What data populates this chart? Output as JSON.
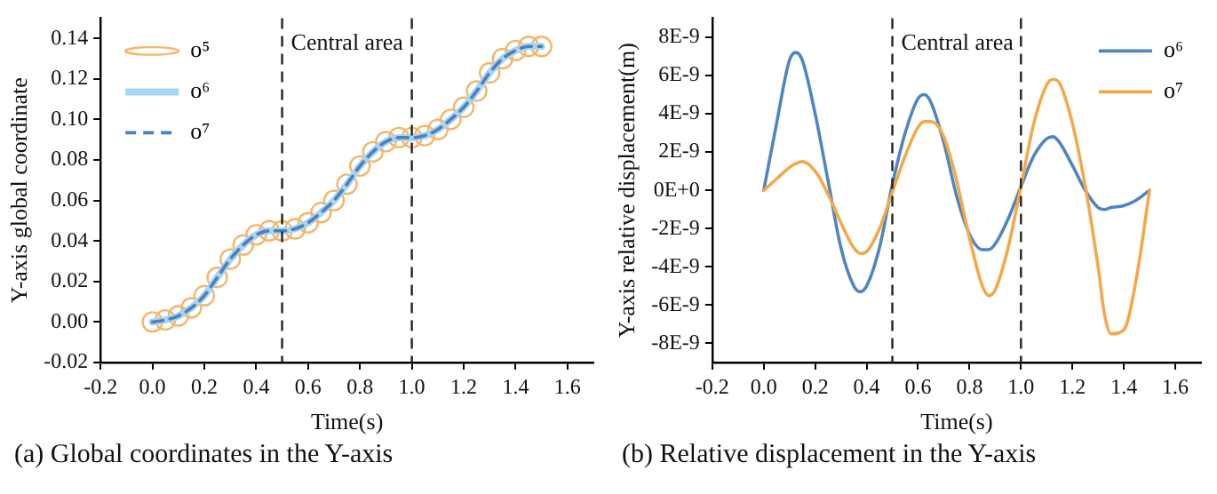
{
  "chart_data": [
    {
      "type": "line",
      "title": "(a) Global coordinates in the Y-axis",
      "xlabel": "Time(s)",
      "ylabel": "Y-axis global coordinate",
      "x": [
        0,
        0.05,
        0.1,
        0.15,
        0.2,
        0.25,
        0.3,
        0.35,
        0.4,
        0.45,
        0.5,
        0.55,
        0.6,
        0.65,
        0.7,
        0.75,
        0.8,
        0.85,
        0.9,
        0.95,
        1.0,
        1.05,
        1.1,
        1.15,
        1.2,
        1.25,
        1.3,
        1.35,
        1.4,
        1.45,
        1.5
      ],
      "series": [
        {
          "name": "o⁵",
          "type": "scatter",
          "marker": "circle",
          "color": "#f5b56b",
          "values": [
            0,
            0.001,
            0.003,
            0.007,
            0.013,
            0.022,
            0.031,
            0.038,
            0.043,
            0.045,
            0.045,
            0.046,
            0.049,
            0.054,
            0.06,
            0.068,
            0.077,
            0.084,
            0.089,
            0.091,
            0.091,
            0.092,
            0.095,
            0.1,
            0.106,
            0.114,
            0.123,
            0.13,
            0.134,
            0.136,
            0.136
          ]
        },
        {
          "name": "o⁶",
          "type": "line",
          "marker": "none",
          "line_style": "solid",
          "color": "#a9d4ef",
          "values": [
            0,
            0.001,
            0.003,
            0.007,
            0.013,
            0.022,
            0.031,
            0.038,
            0.043,
            0.045,
            0.045,
            0.046,
            0.049,
            0.054,
            0.06,
            0.068,
            0.077,
            0.084,
            0.089,
            0.091,
            0.091,
            0.092,
            0.095,
            0.1,
            0.106,
            0.114,
            0.123,
            0.13,
            0.134,
            0.136,
            0.136
          ]
        },
        {
          "name": "o⁷",
          "type": "line",
          "marker": "none",
          "line_style": "dashed",
          "color": "#4a7fc1",
          "values": [
            0,
            0.001,
            0.003,
            0.007,
            0.013,
            0.022,
            0.031,
            0.038,
            0.043,
            0.045,
            0.045,
            0.046,
            0.049,
            0.054,
            0.06,
            0.068,
            0.077,
            0.084,
            0.089,
            0.091,
            0.091,
            0.092,
            0.095,
            0.1,
            0.106,
            0.114,
            0.123,
            0.13,
            0.134,
            0.136,
            0.136
          ]
        }
      ],
      "xlim": [
        -0.2,
        1.7
      ],
      "xticks": [
        {
          "value": -0.2,
          "label": "-0.2"
        },
        {
          "value": 0,
          "label": "0.0"
        },
        {
          "value": 0.2,
          "label": "0.2"
        },
        {
          "value": 0.4,
          "label": "0.4"
        },
        {
          "value": 0.6,
          "label": "0.6"
        },
        {
          "value": 0.8,
          "label": "0.8"
        },
        {
          "value": 1,
          "label": "1.0"
        },
        {
          "value": 1.2,
          "label": "1.2"
        },
        {
          "value": 1.4,
          "label": "1.4"
        },
        {
          "value": 1.6,
          "label": "1.6"
        }
      ],
      "ylim": [
        -0.02,
        0.15
      ],
      "yticks": [
        {
          "value": -0.02,
          "label": "-0.02"
        },
        {
          "value": 0,
          "label": "0.00"
        },
        {
          "value": 0.02,
          "label": "0.02"
        },
        {
          "value": 0.04,
          "label": "0.04"
        },
        {
          "value": 0.06,
          "label": "0.06"
        },
        {
          "value": 0.08,
          "label": "0.08"
        },
        {
          "value": 0.1,
          "label": "0.10"
        },
        {
          "value": 0.12,
          "label": "0.12"
        },
        {
          "value": 0.14,
          "label": "0.14"
        }
      ],
      "ref_lines": [
        {
          "axis": "x",
          "value": 0.5,
          "color": "#222222",
          "line_style": "dashed"
        },
        {
          "axis": "x",
          "value": 1.0,
          "color": "#222222",
          "line_style": "dashed"
        }
      ],
      "annotations": [
        "Central area"
      ],
      "grid": false,
      "legend": "top left"
    },
    {
      "type": "line",
      "title": "(b) Relative displacement in the Y-axis",
      "xlabel": "Time(s)",
      "ylabel": "Y-axis relative displacement(m)",
      "x": [
        0,
        0.05,
        0.1,
        0.125,
        0.15,
        0.2,
        0.25,
        0.3,
        0.35,
        0.375,
        0.4,
        0.45,
        0.5,
        0.55,
        0.6,
        0.625,
        0.65,
        0.7,
        0.75,
        0.8,
        0.85,
        0.875,
        0.9,
        0.95,
        1.0,
        1.05,
        1.1,
        1.125,
        1.15,
        1.2,
        1.25,
        1.3,
        1.325,
        1.35,
        1.4,
        1.45,
        1.5
      ],
      "series": [
        {
          "name": "o⁶",
          "color": "#4f86c2",
          "values": [
            0,
            3.5e-09,
            6.8e-09,
            7.2e-09,
            6.8e-09,
            4e-09,
            5e-10,
            -3e-09,
            -5e-09,
            -5.3e-09,
            -5e-09,
            -3e-09,
            3e-10,
            3e-09,
            4.8e-09,
            5e-09,
            4.6e-09,
            2.5e-09,
            -3e-10,
            -2.3e-09,
            -3.1e-09,
            -3.1e-09,
            -2.8e-09,
            -1.5e-09,
            2e-10,
            1.8e-09,
            2.7e-09,
            2.8e-09,
            2.5e-09,
            1.3e-09,
            0,
            -9e-10,
            -1e-09,
            -9e-10,
            -8e-10,
            -5e-10,
            0
          ]
        },
        {
          "name": "o⁷",
          "color": "#f5a84a",
          "values": [
            0,
            6e-10,
            1.2e-09,
            1.4e-09,
            1.5e-09,
            1e-09,
            -2e-10,
            -1.7e-09,
            -3e-09,
            -3.3e-09,
            -3.2e-09,
            -2e-09,
            -1e-10,
            1.8e-09,
            3.3e-09,
            3.6e-09,
            3.6e-09,
            2.8e-09,
            5e-10,
            -2.5e-09,
            -5e-09,
            -5.5e-09,
            -5.2e-09,
            -3e-09,
            2e-10,
            3.5e-09,
            5.5e-09,
            5.8e-09,
            5.6e-09,
            3.5e-09,
            2e-10,
            -4e-09,
            -6.5e-09,
            -7.5e-09,
            -7.3e-09,
            -4.5e-09,
            0
          ]
        }
      ],
      "xlim": [
        -0.2,
        1.7
      ],
      "xticks": [
        {
          "value": -0.2,
          "label": "-0.2"
        },
        {
          "value": 0,
          "label": "0.0"
        },
        {
          "value": 0.2,
          "label": "0.2"
        },
        {
          "value": 0.4,
          "label": "0.4"
        },
        {
          "value": 0.6,
          "label": "0.6"
        },
        {
          "value": 0.8,
          "label": "0.8"
        },
        {
          "value": 1,
          "label": "1.0"
        },
        {
          "value": 1.2,
          "label": "1.2"
        },
        {
          "value": 1.4,
          "label": "1.4"
        },
        {
          "value": 1.6,
          "label": "1.6"
        }
      ],
      "ylim": [
        -9e-09,
        9e-09
      ],
      "yticks": [
        {
          "value": -8e-09,
          "label": "-8E-9"
        },
        {
          "value": -6e-09,
          "label": "-6E-9"
        },
        {
          "value": -4e-09,
          "label": "-4E-9"
        },
        {
          "value": -2e-09,
          "label": "-2E-9"
        },
        {
          "value": 0,
          "label": "0E+0"
        },
        {
          "value": 2e-09,
          "label": "2E-9"
        },
        {
          "value": 4e-09,
          "label": "4E-9"
        },
        {
          "value": 6e-09,
          "label": "6E-9"
        },
        {
          "value": 8e-09,
          "label": "8E-9"
        }
      ],
      "ref_lines": [
        {
          "axis": "x",
          "value": 0.5,
          "color": "#222222",
          "line_style": "dashed"
        },
        {
          "axis": "x",
          "value": 1.0,
          "color": "#222222",
          "line_style": "dashed"
        }
      ],
      "annotations": [
        "Central area"
      ],
      "grid": false,
      "marker": "none",
      "legend": "top right"
    }
  ]
}
